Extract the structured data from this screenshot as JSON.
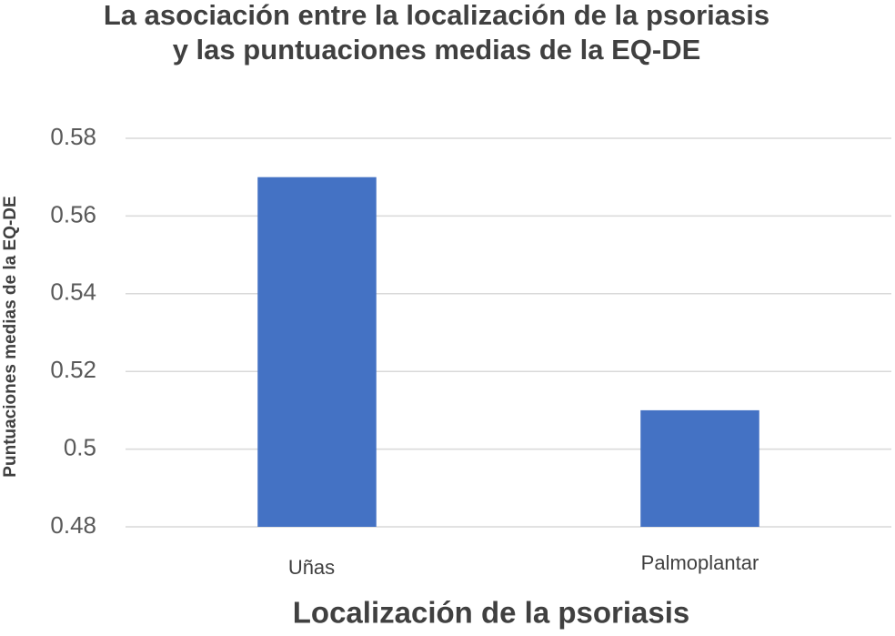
{
  "chart_data": {
    "type": "bar",
    "title": [
      "La asociación entre la localización de la psoriasis",
      "y las puntuaciones medias de la EQ-DE"
    ],
    "x_label": "Localización de la psoriasis",
    "y_label": "Puntuaciones medias de la EQ-DE",
    "categories": [
      "Uñas",
      "Palmoplantar"
    ],
    "values": [
      0.57,
      0.51
    ],
    "color": "#4472c4",
    "ylim": [
      0.48,
      0.58
    ],
    "yticks": [
      0.48,
      0.5,
      0.52,
      0.54,
      0.56,
      0.58
    ],
    "grid": true
  }
}
